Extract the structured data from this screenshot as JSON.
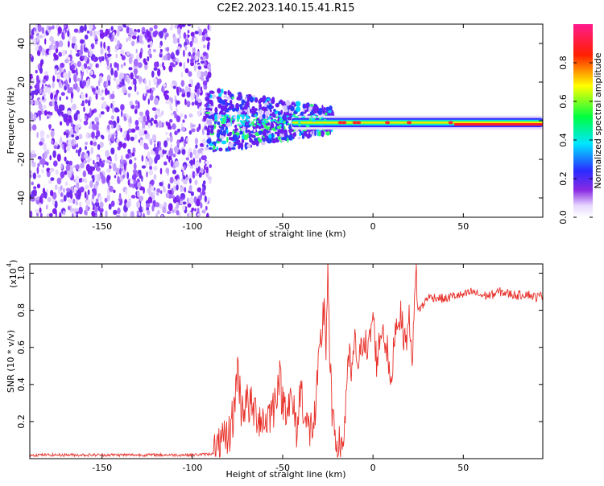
{
  "chart_data": [
    {
      "type": "heatmap",
      "title": "C2E2.2023.140.15.41.R15",
      "xlabel": "Height of straight line (km)",
      "ylabel": "Frequency (Hz)",
      "xlim": [
        -190,
        94
      ],
      "ylim": [
        -50,
        50
      ],
      "xticks": [
        -150,
        -100,
        -50,
        0,
        50
      ],
      "yticks": [
        40,
        20,
        0,
        -20,
        -40
      ],
      "colorbar": {
        "label": "Normalized spectral amplitude",
        "range": [
          0.0,
          1.0
        ],
        "ticks": [
          "0.0",
          "0.2",
          "0.4",
          "0.6",
          "0.8"
        ],
        "colormap": "rainbow (white-purple-blue-cyan-green-yellow-red-magenta)"
      },
      "description_regions": [
        {
          "x_from": -190,
          "x_to": -90,
          "pattern": "broadband noise, purple speckle across all frequencies"
        },
        {
          "x_from": -90,
          "x_to": 94,
          "pattern": "narrow band centered near 0 Hz, amplitude increasing with height"
        }
      ]
    },
    {
      "type": "line",
      "xlabel": "Height of straight line (km)",
      "ylabel": "SNR (10 * v/v)",
      "y_multiplier_label": "(x10",
      "y_multiplier_exp": "4",
      "xlim": [
        -190,
        94
      ],
      "ylim": [
        0,
        1.05
      ],
      "xticks": [
        -150,
        -100,
        -50,
        0,
        50
      ],
      "yticks": [
        0.2,
        0.4,
        0.6,
        0.8,
        1.0
      ],
      "color": "#e8322b",
      "series": [
        {
          "x": [
            -190,
            -150,
            -100,
            -90,
            -85,
            -80,
            -77,
            -75,
            -73,
            -70,
            -65,
            -60,
            -55,
            -52,
            -50,
            -45,
            -42,
            -40,
            -37,
            -35,
            -32,
            -30,
            -28,
            -27,
            -26,
            -25,
            -24,
            -23,
            -22,
            -20,
            -18,
            -16,
            -15,
            -13,
            -12,
            -10,
            -8,
            -5,
            -3,
            0,
            2,
            5,
            8,
            10,
            12,
            15,
            18,
            20,
            22,
            23,
            24,
            25,
            28,
            30,
            35,
            40,
            45,
            50,
            55,
            60,
            65,
            70,
            75,
            80,
            85,
            90,
            94
          ],
          "y": [
            0.02,
            0.02,
            0.02,
            0.025,
            0.05,
            0.12,
            0.25,
            0.5,
            0.28,
            0.3,
            0.25,
            0.2,
            0.28,
            0.45,
            0.3,
            0.3,
            0.15,
            0.4,
            0.18,
            0.15,
            0.22,
            0.5,
            0.72,
            0.85,
            0.6,
            1.05,
            0.5,
            0.35,
            0.15,
            0.1,
            0.05,
            0.12,
            0.35,
            0.55,
            0.45,
            0.62,
            0.5,
            0.68,
            0.55,
            0.78,
            0.52,
            0.72,
            0.58,
            0.36,
            0.7,
            0.78,
            0.62,
            0.75,
            0.55,
            0.85,
            1.0,
            0.8,
            0.83,
            0.87,
            0.87,
            0.86,
            0.88,
            0.88,
            0.9,
            0.88,
            0.88,
            0.9,
            0.89,
            0.88,
            0.89,
            0.87,
            0.88
          ]
        }
      ]
    }
  ]
}
